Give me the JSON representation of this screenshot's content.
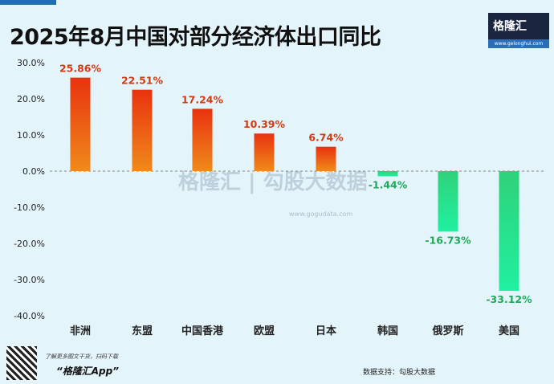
{
  "header": {
    "title": "2025年8月中国对部分经济体出口同比",
    "logo_text": "格隆汇",
    "logo_url": "www.gelonghui.com"
  },
  "watermark": {
    "text": "格隆汇 | 勾股大数据",
    "url": "www.gogudata.com"
  },
  "footer": {
    "promo": "了解更多图文干货，扫码下载",
    "app": "“格隆汇App”",
    "source": "数据支持：勾股大数据"
  },
  "colors": {
    "positive_top": "#e8320f",
    "positive_bottom": "#f08a1a",
    "negative_top": "#2fd27a",
    "negative_bottom": "#20f0a0",
    "pos_label": "#d23a12",
    "neg_label": "#1ea85a"
  },
  "chart_data": {
    "type": "bar",
    "title": "2025年8月中国对部分经济体出口同比",
    "categories": [
      "非洲",
      "东盟",
      "中国香港",
      "欧盟",
      "日本",
      "韩国",
      "俄罗斯",
      "美国"
    ],
    "values": [
      25.86,
      22.51,
      17.24,
      10.39,
      6.74,
      -1.44,
      -16.73,
      -33.12
    ],
    "labels": [
      "25.86%",
      "22.51%",
      "17.24%",
      "10.39%",
      "6.74%",
      "-1.44%",
      "-16.73%",
      "-33.12%"
    ],
    "yticks": [
      "30.0%",
      "20.0%",
      "10.0%",
      "0.0%",
      "-10.0%",
      "-20.0%",
      "-30.0%",
      "-40.0%"
    ],
    "ylim": [
      -40,
      30
    ],
    "grid": false,
    "legend": "none"
  }
}
